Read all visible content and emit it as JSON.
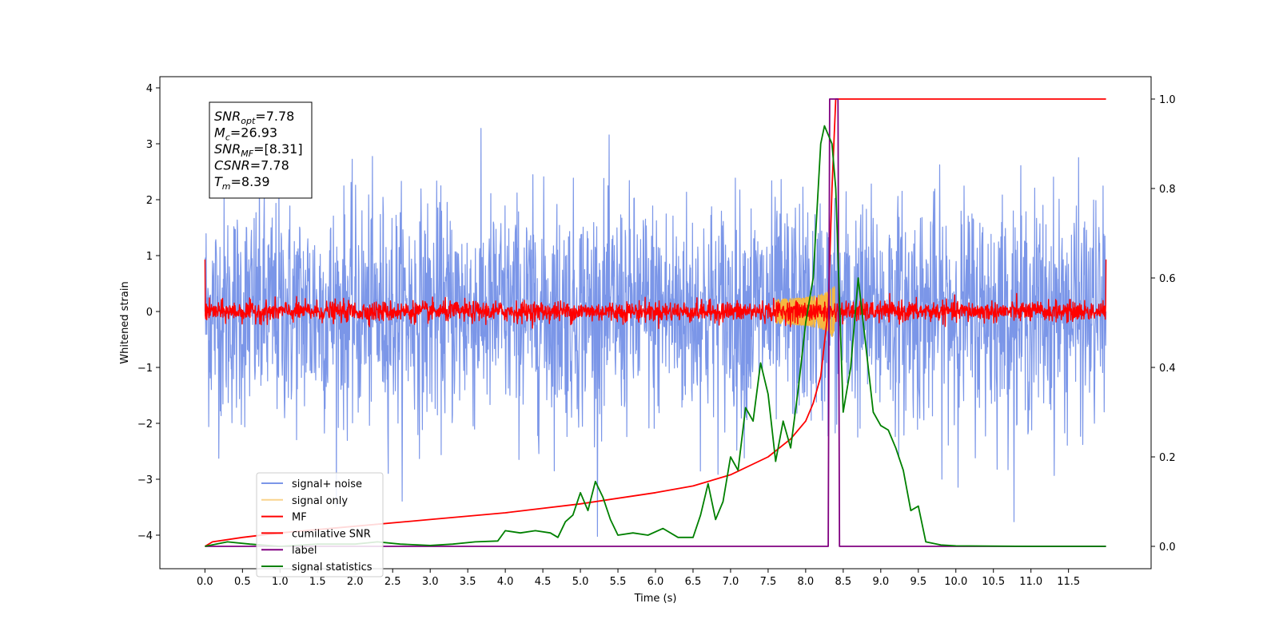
{
  "chart_data": {
    "type": "line",
    "xlabel": "Time (s)",
    "ylabel": "Whitened strain",
    "xlim": [
      -0.6,
      12.6
    ],
    "ylim": [
      -4.6,
      4.2
    ],
    "ylim_right": [
      -0.05,
      1.05
    ],
    "x_ticks": [
      "0.0",
      "0.5",
      "1.0",
      "1.5",
      "2.0",
      "2.5",
      "3.0",
      "3.5",
      "4.0",
      "4.5",
      "5.0",
      "5.5",
      "6.0",
      "6.5",
      "7.0",
      "7.5",
      "8.0",
      "8.5",
      "9.0",
      "9.5",
      "10.0",
      "10.5",
      "11.0",
      "11.5"
    ],
    "y_ticks": [
      "4",
      "3",
      "2",
      "1",
      "0",
      "−1",
      "−2",
      "−3",
      "−4"
    ],
    "y_ticks_right": [
      "1.0",
      "0.8",
      "0.6",
      "0.4",
      "0.2",
      "0.0"
    ],
    "grid": false,
    "legend_position": "lower-left",
    "info_box": {
      "lines": [
        {
          "sym": "SNR",
          "sub": "opt",
          "val": "=7.78"
        },
        {
          "sym": "M",
          "sub": "c",
          "val": "=26.93"
        },
        {
          "sym": "SNR",
          "sub": "MF",
          "val": "=[8.31]"
        },
        {
          "sym": "CSNR",
          "sub": "",
          "val": "=7.78"
        },
        {
          "sym": "T",
          "sub": "m",
          "val": "=8.39"
        }
      ]
    },
    "series": [
      {
        "name": "signal+ noise",
        "color": "#7b96e8",
        "axis": "left",
        "kind": "noise",
        "amplitude": 1.0,
        "samples": 2400,
        "x_range": [
          0.0,
          12.0
        ]
      },
      {
        "name": "signal only",
        "color": "#f5b841",
        "axis": "left",
        "kind": "chirp",
        "peak_time": 8.39,
        "peak_amplitude": 0.45
      },
      {
        "name": "MF",
        "color": "#ff0000",
        "axis": "left",
        "kind": "noise",
        "amplitude": 0.09,
        "samples": 2400,
        "x_range": [
          0.0,
          12.0
        ]
      },
      {
        "name": "cumilative SNR",
        "color": "#ff0000",
        "axis": "right",
        "x": [
          0.0,
          0.1,
          0.5,
          1.0,
          2.0,
          3.0,
          4.0,
          5.0,
          6.0,
          6.5,
          7.0,
          7.5,
          7.8,
          8.0,
          8.1,
          8.2,
          8.3,
          8.35,
          8.4,
          8.45,
          9.0,
          10.0,
          11.0,
          12.0
        ],
        "values": [
          0.0,
          0.01,
          0.02,
          0.03,
          0.045,
          0.06,
          0.075,
          0.095,
          0.12,
          0.135,
          0.16,
          0.2,
          0.24,
          0.28,
          0.32,
          0.38,
          0.53,
          0.8,
          1.0,
          1.0,
          1.0,
          1.0,
          1.0,
          1.0
        ]
      },
      {
        "name": "label",
        "color": "#800080",
        "axis": "right",
        "x": [
          0.0,
          8.3,
          8.32,
          8.43,
          8.45,
          12.0
        ],
        "values": [
          0.0,
          0.0,
          1.0,
          1.0,
          0.0,
          0.0
        ]
      },
      {
        "name": "signal statistics",
        "color": "#008000",
        "axis": "right",
        "x": [
          0.0,
          0.3,
          0.6,
          1.0,
          1.5,
          2.0,
          2.3,
          2.6,
          3.0,
          3.3,
          3.6,
          3.9,
          4.0,
          4.2,
          4.4,
          4.6,
          4.7,
          4.8,
          4.9,
          5.0,
          5.1,
          5.2,
          5.3,
          5.4,
          5.5,
          5.7,
          5.9,
          6.1,
          6.3,
          6.5,
          6.6,
          6.7,
          6.8,
          6.9,
          7.0,
          7.1,
          7.2,
          7.3,
          7.4,
          7.5,
          7.6,
          7.7,
          7.8,
          7.9,
          8.0,
          8.1,
          8.2,
          8.25,
          8.3,
          8.35,
          8.4,
          8.5,
          8.6,
          8.7,
          8.8,
          8.9,
          9.0,
          9.1,
          9.2,
          9.3,
          9.4,
          9.5,
          9.6,
          9.8,
          10.0,
          11.0,
          12.0
        ],
        "values": [
          0.0,
          0.01,
          0.005,
          0.0,
          0.005,
          0.005,
          0.01,
          0.005,
          0.002,
          0.005,
          0.01,
          0.012,
          0.035,
          0.03,
          0.035,
          0.03,
          0.02,
          0.055,
          0.07,
          0.12,
          0.08,
          0.145,
          0.11,
          0.06,
          0.025,
          0.03,
          0.025,
          0.04,
          0.02,
          0.02,
          0.07,
          0.14,
          0.06,
          0.1,
          0.2,
          0.17,
          0.31,
          0.28,
          0.41,
          0.34,
          0.19,
          0.28,
          0.22,
          0.35,
          0.5,
          0.6,
          0.9,
          0.94,
          0.92,
          0.9,
          0.8,
          0.3,
          0.4,
          0.6,
          0.45,
          0.3,
          0.27,
          0.26,
          0.22,
          0.17,
          0.08,
          0.09,
          0.01,
          0.003,
          0.001,
          0.0,
          0.0
        ]
      }
    ]
  }
}
